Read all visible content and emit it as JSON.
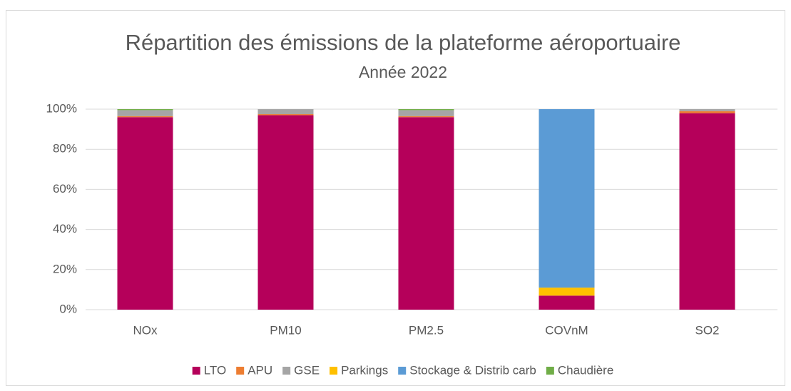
{
  "chart_data": {
    "type": "stacked_bar",
    "title": "Répartition des émissions de la plateforme aéroportuaire",
    "subtitle": "Année 2022",
    "categories": [
      "NOx",
      "PM10",
      "PM2.5",
      "COVnM",
      "SO2"
    ],
    "series": [
      {
        "name": "LTO",
        "color": "#b5005a",
        "values": [
          96,
          97,
          96,
          7,
          98
        ]
      },
      {
        "name": "APU",
        "color": "#ed7d31",
        "values": [
          0.5,
          0.5,
          0.5,
          0,
          1
        ]
      },
      {
        "name": "GSE",
        "color": "#a5a5a5",
        "values": [
          3,
          2.5,
          3,
          0,
          1
        ]
      },
      {
        "name": "Parkings",
        "color": "#ffc000",
        "values": [
          0,
          0,
          0,
          4,
          0
        ]
      },
      {
        "name": "Stockage & Distrib carb",
        "color": "#5b9bd5",
        "values": [
          0,
          0,
          0,
          89,
          0
        ]
      },
      {
        "name": "Chaudière",
        "color": "#70ad47",
        "values": [
          0.5,
          0,
          0.5,
          0,
          0
        ]
      }
    ],
    "ylim": [
      0,
      100
    ],
    "yticks": [
      {
        "value": 0,
        "label": "0%"
      },
      {
        "value": 20,
        "label": "20%"
      },
      {
        "value": 40,
        "label": "40%"
      },
      {
        "value": 60,
        "label": "60%"
      },
      {
        "value": 80,
        "label": "80%"
      },
      {
        "value": 100,
        "label": "100%"
      }
    ],
    "grid": true,
    "legend": "bottom"
  }
}
